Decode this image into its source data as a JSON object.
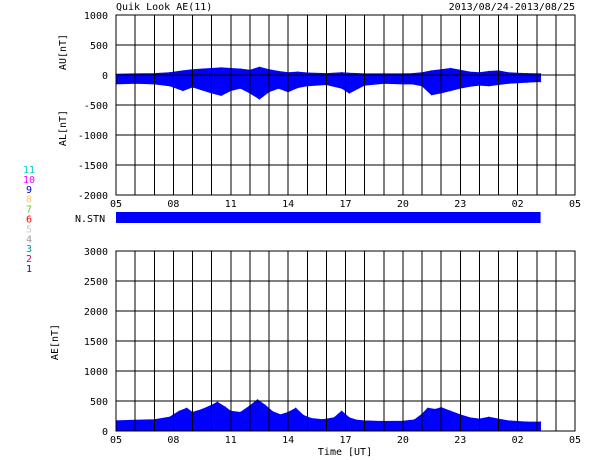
{
  "title": "Quik Look AE(11)",
  "date_range": "2013/08/24-2013/08/25",
  "nstn_label": "N.STN",
  "station_counts": {
    "labels": [
      "11",
      "10",
      "9",
      "8",
      "7",
      "6",
      "5",
      "4",
      "3",
      "2",
      "1"
    ],
    "colors": [
      "#00cccc",
      "#ff00ff",
      "#0000cc",
      "#ffcc66",
      "#66cc33",
      "#ff0000",
      "#cccccc",
      "#999999",
      "#009999",
      "#cc0066",
      "#0000ff"
    ]
  },
  "colors": {
    "fill": "#0000ff",
    "grid": "#000000",
    "background": "#ffffff"
  },
  "chart_data": [
    {
      "type": "area",
      "panel": "AU/AL",
      "ylabel_top": "AU[nT]",
      "ylabel_bottom": "AL[nT]",
      "ylim": [
        -2000,
        1000
      ],
      "yticks": [
        1000,
        500,
        0,
        -500,
        -1000,
        -1500,
        -2000
      ],
      "xlim_hours": [
        5,
        29
      ],
      "xtick_labels": [
        "05",
        "08",
        "11",
        "14",
        "17",
        "20",
        "23",
        "02",
        "05"
      ],
      "xtick_hours": [
        5,
        8,
        11,
        14,
        17,
        20,
        23,
        26,
        29
      ],
      "grid": true,
      "data_end_hour": 27.2,
      "series": [
        {
          "name": "AU",
          "x": [
            5.0,
            6.0,
            7.0,
            7.8,
            8.5,
            9.0,
            9.5,
            10.0,
            10.5,
            11.0,
            11.5,
            12.0,
            12.5,
            13.0,
            13.5,
            14.0,
            14.5,
            15.0,
            16.0,
            16.8,
            17.2,
            18.0,
            19.0,
            20.0,
            20.5,
            21.0,
            21.5,
            22.0,
            22.5,
            23.0,
            23.5,
            24.0,
            24.5,
            25.0,
            25.5,
            26.0,
            26.5,
            27.2
          ],
          "values": [
            15,
            20,
            25,
            40,
            70,
            90,
            100,
            110,
            120,
            110,
            100,
            80,
            130,
            90,
            60,
            40,
            50,
            35,
            25,
            40,
            30,
            20,
            20,
            20,
            25,
            40,
            70,
            90,
            110,
            80,
            50,
            40,
            60,
            70,
            40,
            30,
            25,
            20
          ]
        },
        {
          "name": "AL",
          "x": [
            5.0,
            6.0,
            7.0,
            7.8,
            8.5,
            9.0,
            9.5,
            10.0,
            10.5,
            11.0,
            11.5,
            12.0,
            12.5,
            13.0,
            13.5,
            14.0,
            14.5,
            15.0,
            16.0,
            16.8,
            17.2,
            18.0,
            19.0,
            20.0,
            20.5,
            21.0,
            21.5,
            22.0,
            22.5,
            23.0,
            23.5,
            24.0,
            24.5,
            25.0,
            25.5,
            26.0,
            26.5,
            27.2
          ],
          "values": [
            -150,
            -140,
            -150,
            -180,
            -260,
            -200,
            -250,
            -300,
            -340,
            -260,
            -220,
            -300,
            -400,
            -280,
            -220,
            -280,
            -210,
            -180,
            -160,
            -220,
            -300,
            -170,
            -140,
            -150,
            -150,
            -180,
            -330,
            -300,
            -260,
            -220,
            -190,
            -170,
            -180,
            -160,
            -140,
            -130,
            -120,
            -110
          ]
        }
      ]
    },
    {
      "type": "area",
      "panel": "AE",
      "ylabel": "AE[nT]",
      "xlabel": "Time [UT]",
      "ylim": [
        0,
        3000
      ],
      "yticks": [
        3000,
        2500,
        2000,
        1500,
        1000,
        500,
        0
      ],
      "xlim_hours": [
        5,
        29
      ],
      "xtick_labels": [
        "05",
        "08",
        "11",
        "14",
        "17",
        "20",
        "23",
        "02",
        "05"
      ],
      "xtick_hours": [
        5,
        8,
        11,
        14,
        17,
        20,
        23,
        26,
        29
      ],
      "grid": true,
      "data_end_hour": 27.2,
      "series": [
        {
          "name": "AE",
          "x": [
            5.0,
            6.0,
            7.0,
            7.8,
            8.3,
            8.7,
            9.0,
            9.5,
            10.0,
            10.3,
            10.7,
            11.0,
            11.5,
            12.0,
            12.4,
            12.8,
            13.2,
            13.6,
            14.0,
            14.4,
            14.8,
            15.2,
            15.8,
            16.4,
            16.8,
            17.2,
            17.6,
            18.0,
            19.0,
            20.0,
            20.6,
            21.0,
            21.3,
            21.7,
            22.0,
            22.5,
            23.0,
            23.5,
            24.0,
            24.5,
            25.0,
            25.5,
            26.0,
            26.5,
            27.2
          ],
          "values": [
            170,
            180,
            190,
            230,
            330,
            380,
            310,
            360,
            430,
            480,
            400,
            330,
            310,
            420,
            520,
            430,
            320,
            270,
            310,
            380,
            260,
            210,
            190,
            220,
            330,
            220,
            180,
            170,
            160,
            165,
            185,
            280,
            380,
            360,
            390,
            330,
            270,
            220,
            200,
            230,
            200,
            170,
            160,
            150,
            150
          ]
        }
      ]
    }
  ]
}
